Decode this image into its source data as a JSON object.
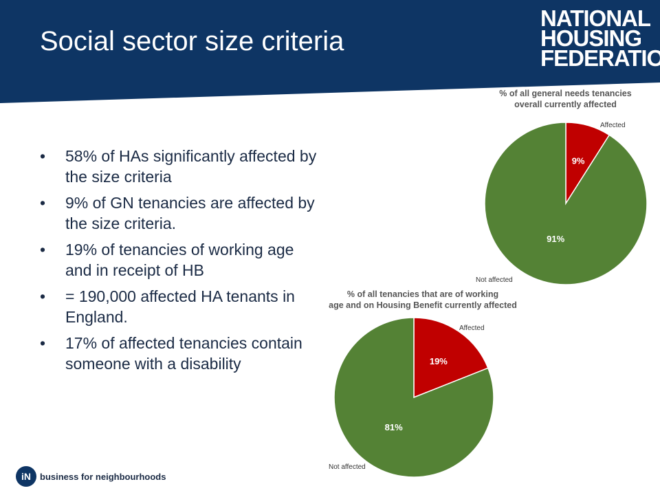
{
  "header": {
    "title": "Social sector size criteria",
    "logo_lines": [
      "NATIONAL",
      "HOUSING",
      "FEDERATION"
    ]
  },
  "bullets": [
    "58% of HAs significantly affected by the size criteria",
    " 9% of GN tenancies are affected by the size criteria.",
    "19% of tenancies of working age and in receipt of HB",
    " = 190,000 affected HA tenants in England.",
    " 17% of affected tenancies contain someone with a disability"
  ],
  "footer": {
    "text": "business for neighbourhoods",
    "logo_letters": "iN"
  },
  "colors": {
    "header_bg": "#0e3564",
    "affected": "#c00000",
    "not_affected": "#548235"
  },
  "chart_data": [
    {
      "type": "pie",
      "title": "% of all general needs tenancies overall currently affected",
      "title_lines": [
        "% of all general needs tenancies",
        "overall currently affected"
      ],
      "slices": [
        {
          "label": "Affected",
          "value": 9,
          "value_label": "9%",
          "color": "#c00000"
        },
        {
          "label": "Not affected",
          "value": 91,
          "value_label": "91%",
          "color": "#548235"
        }
      ]
    },
    {
      "type": "pie",
      "title": "% of all tenancies that are of working age and on Housing Benefit currently affected",
      "title_lines": [
        "% of all tenancies that are of working",
        "age and on Housing Benefit currently affected"
      ],
      "slices": [
        {
          "label": "Affected",
          "value": 19,
          "value_label": "19%",
          "color": "#c00000"
        },
        {
          "label": "Not affected",
          "value": 81,
          "value_label": "81%",
          "color": "#548235"
        }
      ]
    }
  ]
}
